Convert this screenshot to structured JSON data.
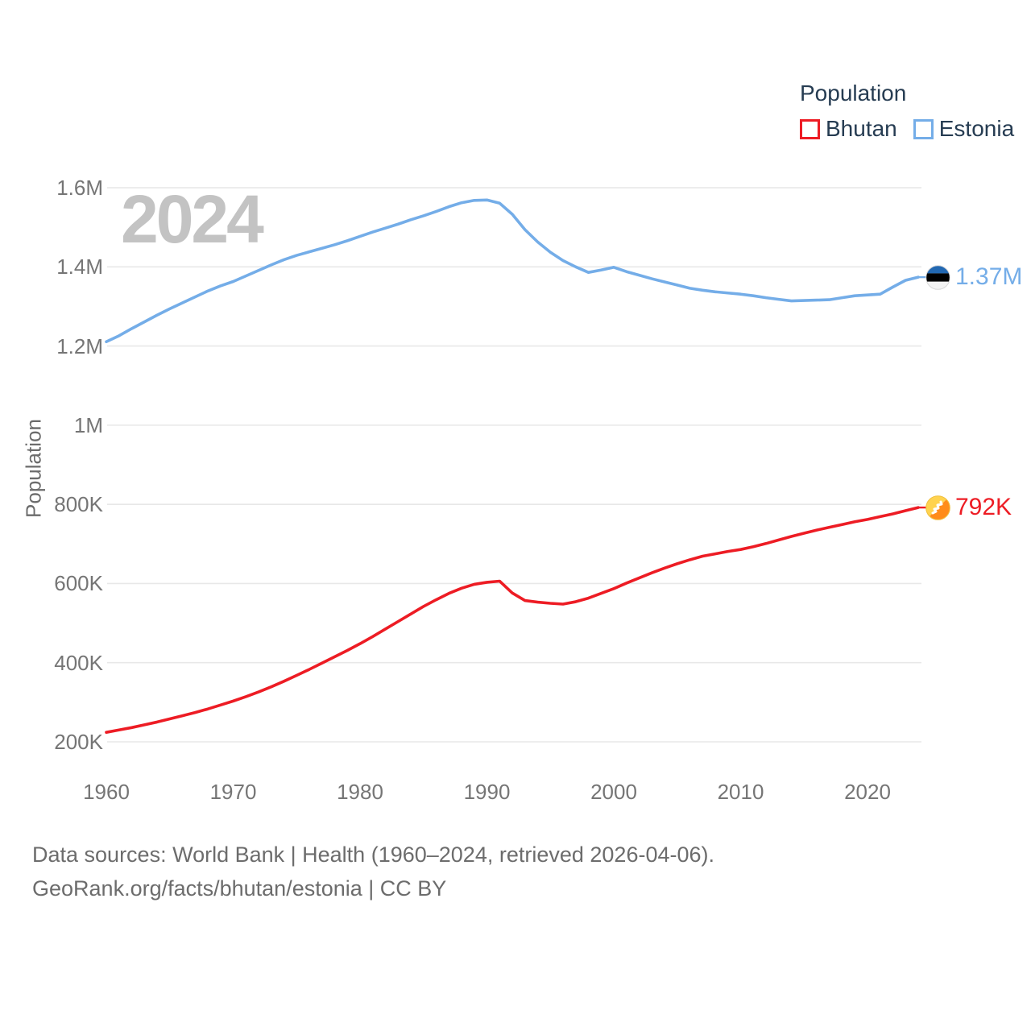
{
  "watermark": "2024",
  "legend": {
    "title": "Population",
    "items": [
      {
        "label": "Bhutan",
        "color": "#ed1c24"
      },
      {
        "label": "Estonia",
        "color": "#74ade8"
      }
    ]
  },
  "chart_data": {
    "type": "line",
    "title": "Population",
    "xlabel": "",
    "ylabel": "Population",
    "grid": "horizontal",
    "legend_position": "top-right",
    "xlim": [
      1960,
      2024
    ],
    "ylim_thousands": [
      150,
      1650
    ],
    "x_ticks": [
      1960,
      1970,
      1980,
      1990,
      2000,
      2010,
      2020
    ],
    "y_ticks": [
      {
        "value": 200,
        "label": "200K"
      },
      {
        "value": 400,
        "label": "400K"
      },
      {
        "value": 600,
        "label": "600K"
      },
      {
        "value": 800,
        "label": "800K"
      },
      {
        "value": 1000,
        "label": "1M"
      },
      {
        "value": 1200,
        "label": "1.2M"
      },
      {
        "value": 1400,
        "label": "1.4M"
      },
      {
        "value": 1600,
        "label": "1.6M"
      }
    ],
    "years": [
      1960,
      1961,
      1962,
      1963,
      1964,
      1965,
      1966,
      1967,
      1968,
      1969,
      1970,
      1971,
      1972,
      1973,
      1974,
      1975,
      1976,
      1977,
      1978,
      1979,
      1980,
      1981,
      1982,
      1983,
      1984,
      1985,
      1986,
      1987,
      1988,
      1989,
      1990,
      1991,
      1992,
      1993,
      1994,
      1995,
      1996,
      1997,
      1998,
      1999,
      2000,
      2001,
      2002,
      2003,
      2004,
      2005,
      2006,
      2007,
      2008,
      2009,
      2010,
      2011,
      2012,
      2013,
      2014,
      2015,
      2016,
      2017,
      2018,
      2019,
      2020,
      2021,
      2022,
      2023,
      2024
    ],
    "series": [
      {
        "name": "Bhutan",
        "color": "#ed1c24",
        "end_label": "792K",
        "flag": "bhutan",
        "values_thousands": [
          224,
          230,
          236,
          243,
          250,
          258,
          266,
          274,
          283,
          293,
          303,
          314,
          326,
          339,
          353,
          368,
          383,
          399,
          415,
          431,
          448,
          466,
          485,
          504,
          523,
          542,
          559,
          575,
          588,
          598,
          603,
          606,
          576,
          557,
          553,
          550,
          548,
          554,
          563,
          575,
          587,
          601,
          614,
          627,
          639,
          650,
          660,
          669,
          675,
          681,
          686,
          693,
          701,
          710,
          719,
          727,
          735,
          742,
          749,
          756,
          762,
          769,
          776,
          784,
          792
        ]
      },
      {
        "name": "Estonia",
        "color": "#74ade8",
        "end_label": "1.37M",
        "flag": "estonia",
        "values_thousands": [
          1211,
          1226,
          1244,
          1261,
          1278,
          1294,
          1309,
          1324,
          1339,
          1352,
          1363,
          1377,
          1391,
          1405,
          1418,
          1429,
          1438,
          1447,
          1456,
          1466,
          1477,
          1488,
          1498,
          1508,
          1519,
          1529,
          1540,
          1552,
          1562,
          1568,
          1569,
          1561,
          1533,
          1494,
          1463,
          1437,
          1416,
          1400,
          1386,
          1392,
          1399,
          1388,
          1379,
          1370,
          1362,
          1354,
          1346,
          1341,
          1337,
          1334,
          1331,
          1327,
          1322,
          1318,
          1314,
          1315,
          1316,
          1317,
          1322,
          1327,
          1329,
          1331,
          1349,
          1366,
          1374
        ]
      }
    ]
  },
  "footer": {
    "line1": "Data sources: World Bank | Health (1960–2024, retrieved 2026-04-06).",
    "line2": "GeoRank.org/facts/bhutan/estonia | CC BY"
  }
}
